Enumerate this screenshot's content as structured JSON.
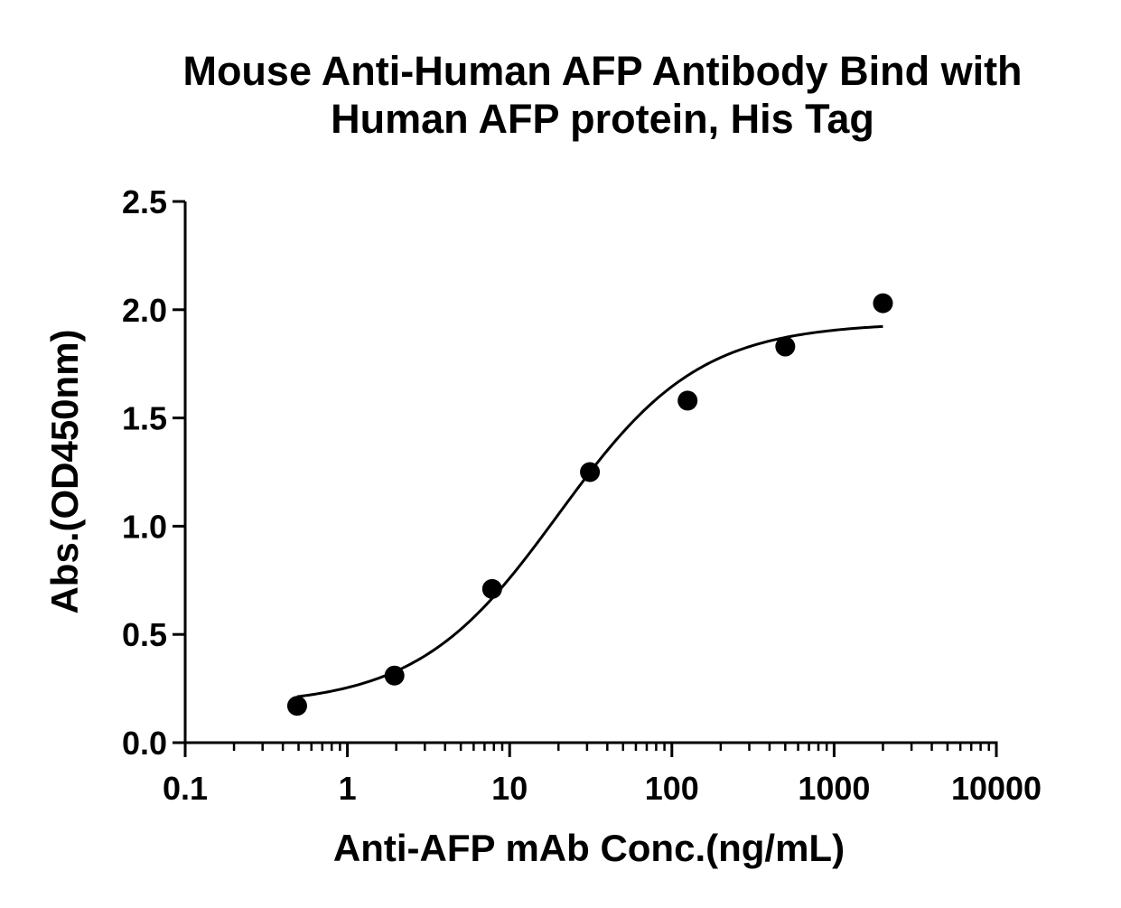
{
  "chart_data": {
    "type": "scatter",
    "title": {
      "line1": "Mouse Anti-Human AFP Antibody Bind with",
      "line2": "Human AFP protein, His Tag"
    },
    "xlabel": "Anti-AFP mAb Conc.(ng/mL)",
    "ylabel": "Abs.(OD450nm)",
    "x_scale": "log",
    "xlim": [
      0.1,
      10000
    ],
    "ylim": [
      0,
      2.5
    ],
    "x_ticks": [
      "0.1",
      "1",
      "10",
      "100",
      "1000",
      "10000"
    ],
    "y_ticks": [
      "0.0",
      "0.5",
      "1.0",
      "1.5",
      "2.0",
      "2.5"
    ],
    "grid": false,
    "series": [
      {
        "points": [
          {
            "x": 0.49,
            "y": 0.17
          },
          {
            "x": 1.95,
            "y": 0.31
          },
          {
            "x": 7.8,
            "y": 0.71
          },
          {
            "x": 31.25,
            "y": 1.25
          },
          {
            "x": 125,
            "y": 1.58
          },
          {
            "x": 500,
            "y": 1.83
          },
          {
            "x": 2000,
            "y": 2.03
          }
        ],
        "fit": {
          "model": "4PL",
          "bottom": 0.17,
          "top": 1.94,
          "ec50": 20,
          "hill": 1.0,
          "x_range": [
            0.49,
            2000
          ]
        }
      }
    ]
  }
}
